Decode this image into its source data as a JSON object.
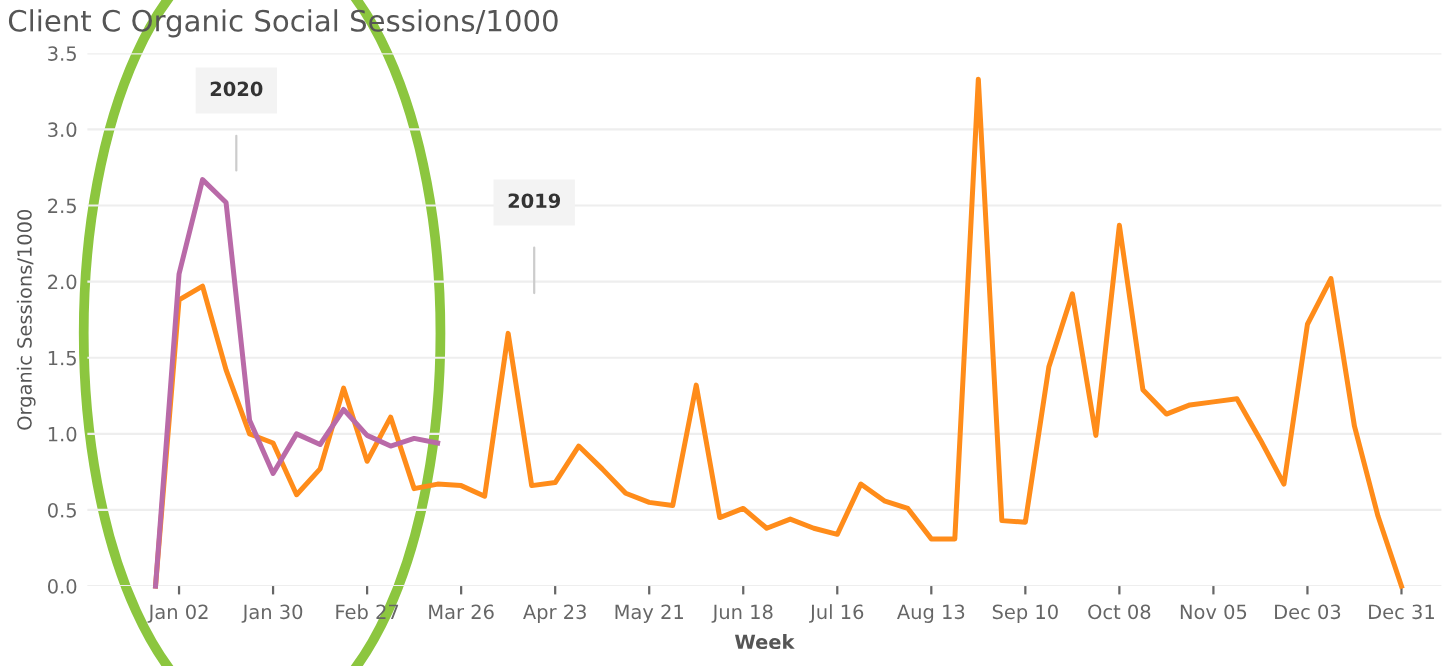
{
  "chart_data": {
    "type": "line",
    "title": "Client C Organic Social Sessions/1000",
    "xlabel": "Week",
    "ylabel": "Organic Sessions/1000",
    "categories": [
      null,
      "Jan 02",
      null,
      null,
      null,
      "Jan 30",
      null,
      null,
      null,
      "Feb 27",
      null,
      null,
      null,
      "Mar 26",
      null,
      null,
      null,
      "Apr 23",
      null,
      null,
      null,
      "May 21",
      null,
      null,
      null,
      "Jun 18",
      null,
      null,
      null,
      "Jul 16",
      null,
      null,
      null,
      "Aug 13",
      null,
      null,
      null,
      "Sep 10",
      null,
      null,
      null,
      "Oct 08",
      null,
      null,
      null,
      "Nov 05",
      null,
      null,
      null,
      "Dec 03",
      null,
      null,
      null,
      "Dec 31"
    ],
    "ylim": [
      0,
      3.5
    ],
    "yticks": [
      {
        "value": 0,
        "label": "0.0"
      },
      {
        "value": 0.5,
        "label": "0.5"
      },
      {
        "value": 1,
        "label": "1.0"
      },
      {
        "value": 1.5,
        "label": "1.5"
      },
      {
        "value": 2,
        "label": "2.0"
      },
      {
        "value": 2.5,
        "label": "2.5"
      },
      {
        "value": 3,
        "label": "3.0"
      },
      {
        "value": 3.5,
        "label": "3.5"
      }
    ],
    "grid": "y",
    "legend": false,
    "marker": "none",
    "line_style": "solid",
    "series": [
      {
        "color": "#ff8c1a",
        "values": [
          0.0,
          1.88,
          1.97,
          1.42,
          1.0,
          0.94,
          0.6,
          0.77,
          1.3,
          0.82,
          1.11,
          0.64,
          0.67,
          0.66,
          0.59,
          1.66,
          0.66,
          0.68,
          0.92,
          0.77,
          0.61,
          0.55,
          0.53,
          1.32,
          0.45,
          0.51,
          0.38,
          0.44,
          0.38,
          0.34,
          0.67,
          0.56,
          0.51,
          0.31,
          0.31,
          3.33,
          0.43,
          0.42,
          1.44,
          1.92,
          0.99,
          2.37,
          1.29,
          1.13,
          1.19,
          1.21,
          1.23,
          0.96,
          0.67,
          1.72,
          2.02,
          1.05,
          0.46,
          0.0
        ]
      },
      {
        "color": "#b96aa8",
        "values": [
          0.0,
          2.05,
          2.67,
          2.52,
          1.09,
          0.74,
          1.0,
          0.93,
          1.16,
          0.99,
          0.92,
          0.97,
          0.94,
          null,
          null,
          null,
          null,
          null,
          null,
          null,
          null,
          null,
          null,
          null,
          null,
          null,
          null,
          null,
          null,
          null,
          null,
          null,
          null,
          null,
          null,
          null,
          null,
          null,
          null,
          null,
          null,
          null,
          null,
          null,
          null,
          null,
          null,
          null,
          null,
          null,
          null,
          null,
          null,
          null
        ]
      }
    ],
    "annotations": [
      "2020",
      "2019"
    ]
  }
}
